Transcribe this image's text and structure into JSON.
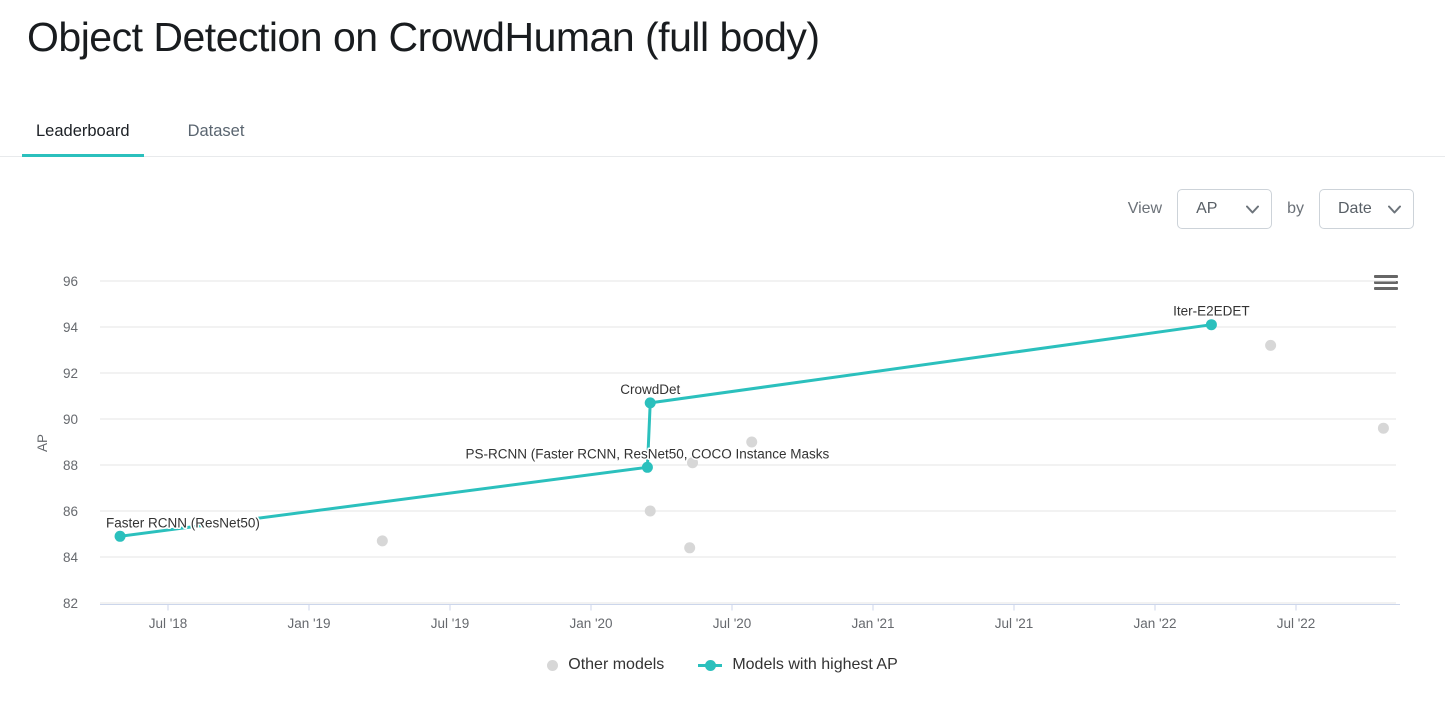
{
  "header": {
    "title": "Object Detection on CrowdHuman (full body)"
  },
  "tabs": {
    "leaderboard": "Leaderboard",
    "dataset": "Dataset"
  },
  "controls": {
    "view_label": "View",
    "by_label": "by",
    "metric_value": "AP",
    "group_value": "Date"
  },
  "legend": {
    "other": "Other models",
    "highlight": "Models with highest AP"
  },
  "colors": {
    "accent": "#2bc0bd",
    "other_dot": "#d7d7d7",
    "grid": "#e6e6e6",
    "axis": "#ccd6eb",
    "tick_text": "#66696e",
    "label_text": "#333333"
  },
  "chart_data": {
    "type": "line+scatter",
    "title": "",
    "xlabel": "Date",
    "ylabel": "AP",
    "ylim": [
      82,
      96
    ],
    "grid": true,
    "legend_position": "bottom",
    "y_ticks": [
      96,
      94,
      92,
      90,
      88,
      86,
      84,
      82
    ],
    "x_ticks": [
      {
        "x": 2018.5,
        "label": "Jul '18"
      },
      {
        "x": 2019.0,
        "label": "Jan '19"
      },
      {
        "x": 2019.5,
        "label": "Jul '19"
      },
      {
        "x": 2020.0,
        "label": "Jan '20"
      },
      {
        "x": 2020.5,
        "label": "Jul '20"
      },
      {
        "x": 2021.0,
        "label": "Jan '21"
      },
      {
        "x": 2021.5,
        "label": "Jul '21"
      },
      {
        "x": 2022.0,
        "label": "Jan '22"
      },
      {
        "x": 2022.5,
        "label": "Jul '22"
      }
    ],
    "series": [
      {
        "name": "Models with highest AP",
        "type": "line",
        "points": [
          {
            "label": "Faster RCNN (ResNet50)",
            "x": 2018.33,
            "y": 84.9,
            "label_anchor": "start",
            "label_dx": -14,
            "label_dy": -9
          },
          {
            "label": "PS-RCNN (Faster RCNN, ResNet50, COCO Instance Masks",
            "x": 2020.2,
            "y": 87.9,
            "label_anchor": "middle",
            "label_dx": 0,
            "label_dy": -9
          },
          {
            "label": "CrowdDet",
            "x": 2020.21,
            "y": 90.7,
            "label_anchor": "middle",
            "label_dx": 0,
            "label_dy": -9
          },
          {
            "label": "Iter-E2EDET",
            "x": 2022.2,
            "y": 94.1,
            "label_anchor": "middle",
            "label_dx": 0,
            "label_dy": -9
          }
        ]
      },
      {
        "name": "Other models",
        "type": "scatter",
        "points": [
          {
            "x": 2019.26,
            "y": 84.7
          },
          {
            "x": 2020.21,
            "y": 86.0
          },
          {
            "x": 2020.36,
            "y": 88.1
          },
          {
            "x": 2020.35,
            "y": 84.4
          },
          {
            "x": 2020.57,
            "y": 89.0
          },
          {
            "x": 2022.41,
            "y": 93.2
          },
          {
            "x": 2022.81,
            "y": 89.6
          }
        ]
      }
    ]
  }
}
